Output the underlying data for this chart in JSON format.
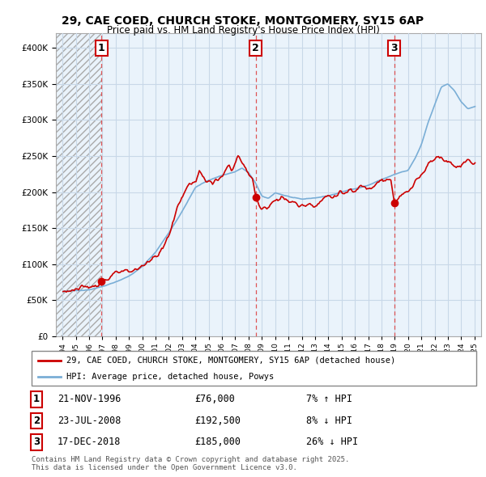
{
  "title": "29, CAE COED, CHURCH STOKE, MONTGOMERY, SY15 6AP",
  "subtitle": "Price paid vs. HM Land Registry's House Price Index (HPI)",
  "legend_label_red": "29, CAE COED, CHURCH STOKE, MONTGOMERY, SY15 6AP (detached house)",
  "legend_label_blue": "HPI: Average price, detached house, Powys",
  "footnote": "Contains HM Land Registry data © Crown copyright and database right 2025.\nThis data is licensed under the Open Government Licence v3.0.",
  "sale_points": [
    {
      "num": "1",
      "date": "21-NOV-1996",
      "price": 76000,
      "price_str": "£76,000",
      "pct": "7%",
      "dir": "↑"
    },
    {
      "num": "2",
      "date": "23-JUL-2008",
      "price": 192500,
      "price_str": "£192,500",
      "pct": "8%",
      "dir": "↓"
    },
    {
      "num": "3",
      "date": "17-DEC-2018",
      "price": 185000,
      "price_str": "£185,000",
      "pct": "26%",
      "dir": "↓"
    }
  ],
  "ylim": [
    0,
    420000
  ],
  "yticks": [
    0,
    50000,
    100000,
    150000,
    200000,
    250000,
    300000,
    350000,
    400000
  ],
  "xlim_start": 1993.5,
  "xlim_end": 2025.5,
  "red_color": "#cc0000",
  "blue_color": "#7aaed6",
  "blue_fill_color": "#dce9f5",
  "vline_color": "#dd4444",
  "grid_color": "#c8d8e8",
  "hatch_color": "#cccccc",
  "bg_color": "#ffffff",
  "chart_bg": "#eaf3fb",
  "vline_years": [
    1996.917,
    2008.542,
    2018.958
  ],
  "marker_years": [
    1996.917,
    2008.542,
    2018.958
  ],
  "marker_values": [
    76000,
    192500,
    185000
  ],
  "marker_labels": [
    "1",
    "2",
    "3"
  ],
  "hatch_end": 1996.917
}
